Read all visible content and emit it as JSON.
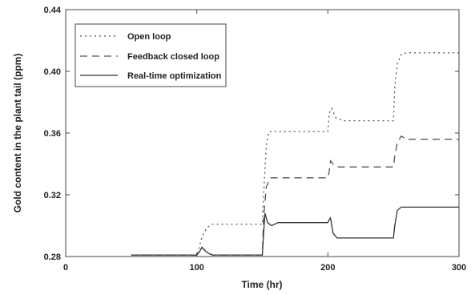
{
  "chart_data": {
    "type": "line",
    "title": "",
    "xlabel": "Time (hr)",
    "ylabel": "Gold content in the plant tail (ppm)",
    "xlim": [
      0,
      300
    ],
    "ylim": [
      0.28,
      0.44
    ],
    "xticks": [
      0,
      100,
      200,
      300
    ],
    "yticks": [
      0.28,
      0.32,
      0.36,
      0.4,
      0.44
    ],
    "xtick_labels": [
      "0",
      "100",
      "200",
      "300"
    ],
    "ytick_labels": [
      "0.28",
      "0.32",
      "0.36",
      "0.40",
      "0.44"
    ],
    "grid": false,
    "legend_position": "top-left",
    "series": [
      {
        "name": "Open loop",
        "style": "dotted",
        "color": "#555555",
        "x": [
          50,
          100,
          101,
          104,
          108,
          112,
          150,
          151,
          153,
          155,
          200,
          201,
          203,
          206,
          212,
          250,
          251,
          253,
          256,
          260,
          300
        ],
        "y": [
          0.281,
          0.281,
          0.283,
          0.293,
          0.299,
          0.301,
          0.301,
          0.32,
          0.352,
          0.361,
          0.361,
          0.373,
          0.376,
          0.37,
          0.368,
          0.368,
          0.39,
          0.405,
          0.411,
          0.412,
          0.412
        ]
      },
      {
        "name": "Feedback closed loop",
        "style": "dashed",
        "color": "#555555",
        "x": [
          50,
          100,
          102,
          104,
          106,
          109,
          112,
          150,
          151,
          153,
          156,
          200,
          201,
          202,
          204,
          208,
          214,
          250,
          251,
          253,
          256,
          260,
          300
        ],
        "y": [
          0.281,
          0.281,
          0.283,
          0.286,
          0.284,
          0.282,
          0.281,
          0.281,
          0.305,
          0.325,
          0.331,
          0.331,
          0.335,
          0.342,
          0.34,
          0.338,
          0.338,
          0.338,
          0.345,
          0.354,
          0.358,
          0.356,
          0.356
        ]
      },
      {
        "name": "Real-time optimization",
        "style": "solid",
        "color": "#333333",
        "x": [
          50,
          100,
          102,
          104,
          106,
          109,
          112,
          150,
          151,
          152,
          154,
          157,
          162,
          200,
          201,
          202,
          204,
          207,
          212,
          250,
          251,
          253,
          256,
          300
        ],
        "y": [
          0.281,
          0.281,
          0.283,
          0.286,
          0.284,
          0.282,
          0.281,
          0.281,
          0.295,
          0.308,
          0.302,
          0.3,
          0.302,
          0.302,
          0.304,
          0.305,
          0.295,
          0.292,
          0.292,
          0.292,
          0.3,
          0.31,
          0.312,
          0.312
        ]
      }
    ]
  }
}
